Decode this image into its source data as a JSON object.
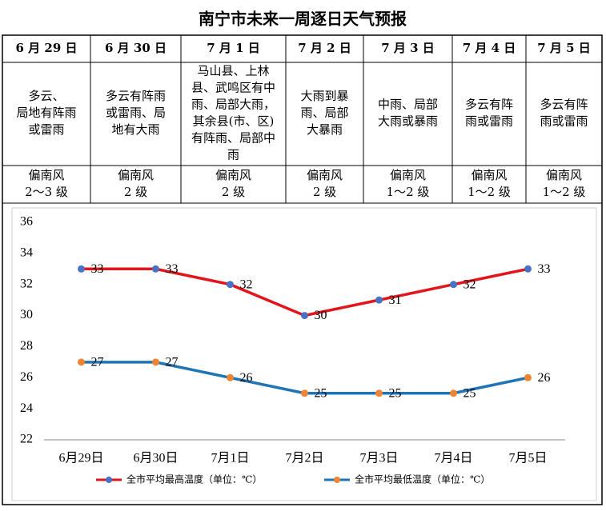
{
  "title": "南宁市未来一周逐日天气预报",
  "table": {
    "header": [
      "6 月 29 日",
      "6 月 30 日",
      "7 月 1 日",
      "7 月 2 日",
      "7 月 3 日",
      "7 月 4 日",
      "7 月 5 日"
    ],
    "weather": [
      [
        "多云、",
        "局地有阵雨",
        "或雷雨"
      ],
      [
        "多云有阵雨",
        "或雷雨、局",
        "地有大雨"
      ],
      [
        "马山县、上林",
        "县、武鸣区有中",
        "雨、局部大雨，",
        "其余县(市、区)",
        "有阵雨、局部中",
        "雨"
      ],
      [
        "大雨到暴",
        "雨、局部",
        "大暴雨"
      ],
      [
        "中雨、局部",
        "大雨或暴雨"
      ],
      [
        "多云有阵",
        "雨或雷雨"
      ],
      [
        "多云有阵",
        "雨或雷雨"
      ]
    ],
    "wind": [
      [
        "偏南风",
        "2～3 级"
      ],
      [
        "偏南风",
        "2 级"
      ],
      [
        "偏南风",
        "2 级"
      ],
      [
        "偏南风",
        "2 级"
      ],
      [
        "偏南风",
        "1～2 级"
      ],
      [
        "偏南风",
        "1～2 级"
      ],
      [
        "偏南风",
        "1～2 级"
      ]
    ]
  },
  "chart_data": {
    "type": "line",
    "categories": [
      "6月29日",
      "6月30日",
      "7月1日",
      "7月2日",
      "7月3日",
      "7月4日",
      "7月5日"
    ],
    "series": [
      {
        "name": "全市平均最高温度（单位：℃）",
        "color": "#e2151c",
        "marker_color": "#4a72c4",
        "values": [
          33,
          33,
          32,
          30,
          31,
          32,
          33
        ]
      },
      {
        "name": "全市平均最低温度（单位：℃）",
        "color": "#1f74b5",
        "marker_color": "#ee8434",
        "values": [
          27,
          27,
          26,
          25,
          25,
          25,
          26
        ]
      }
    ],
    "ylim": [
      22,
      36
    ],
    "yticks": [
      22,
      24,
      26,
      28,
      30,
      32,
      34,
      36
    ],
    "grid": false,
    "legend": "bottom"
  }
}
